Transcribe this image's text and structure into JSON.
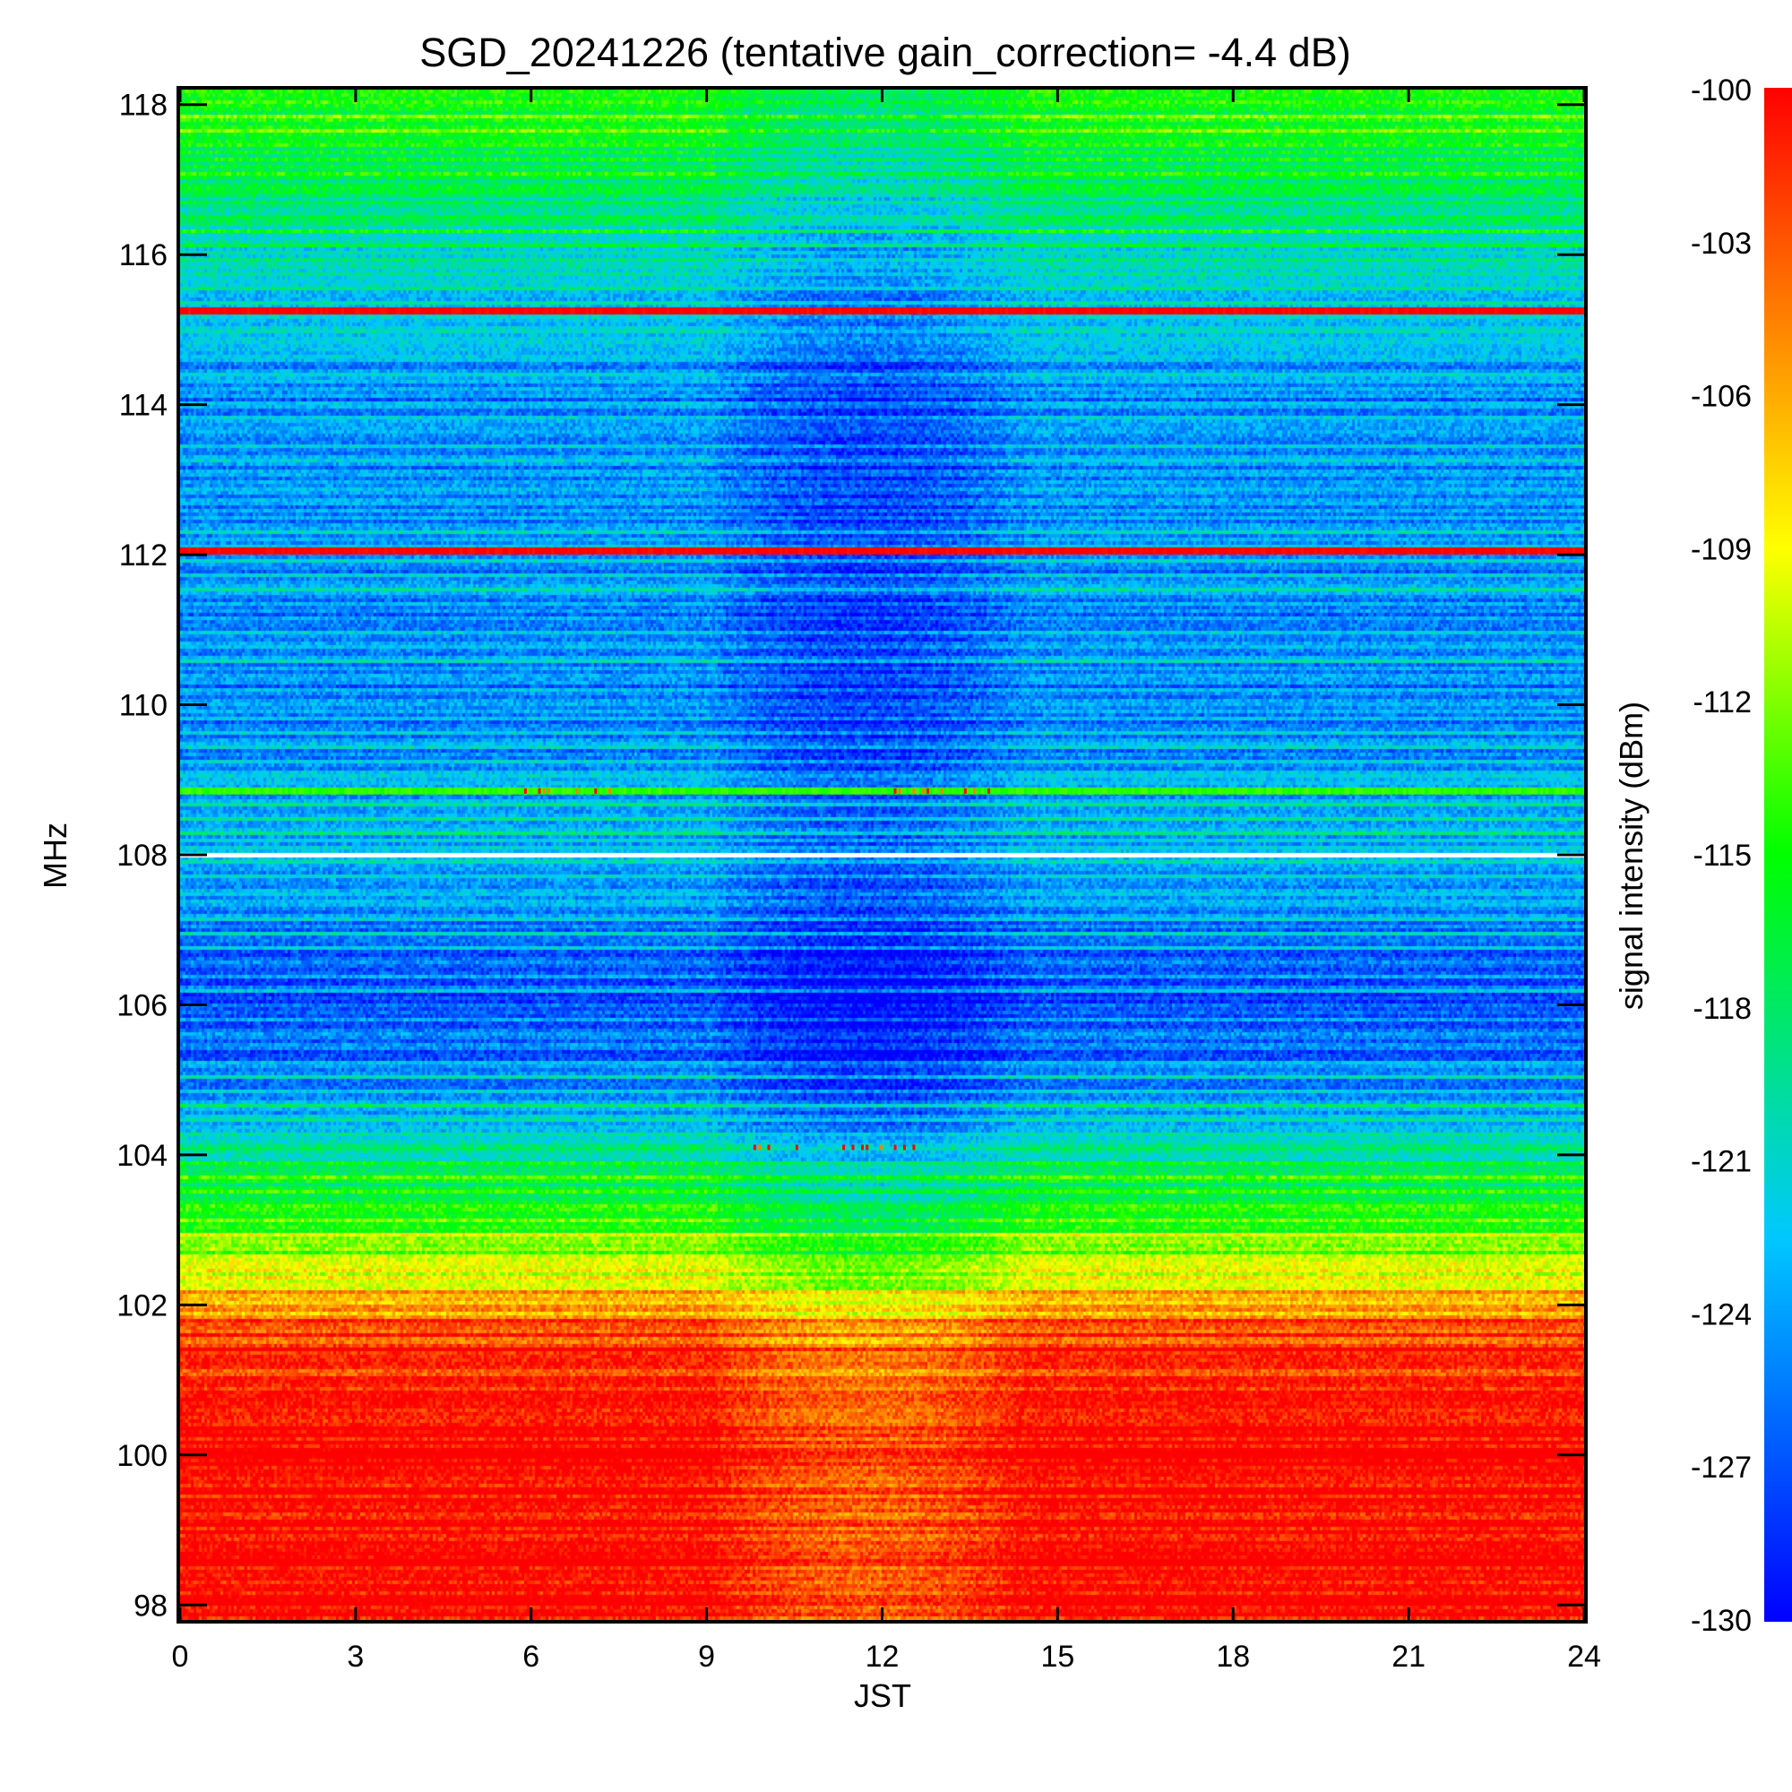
{
  "chart_data": {
    "type": "heatmap",
    "title": "SGD_20241226 (tentative gain_correction= -4.4 dB)",
    "xlabel": "JST",
    "ylabel": "MHz",
    "colorbar_label": "signal intensity (dBm)",
    "xlim": [
      0,
      24
    ],
    "ylim": [
      97.8,
      118.2
    ],
    "x_ticks": [
      0,
      3,
      6,
      9,
      12,
      15,
      18,
      21,
      24
    ],
    "y_ticks": [
      98,
      100,
      102,
      104,
      106,
      108,
      110,
      112,
      114,
      116,
      118
    ],
    "colorbar_range": [
      -130,
      -100
    ],
    "colorbar_ticks": [
      -100,
      -103,
      -106,
      -109,
      -112,
      -115,
      -118,
      -121,
      -124,
      -127,
      -130
    ],
    "colormap": [
      "#0000ff",
      "#00c8ff",
      "#00ff00",
      "#ffff00",
      "#ff8000",
      "#ff0000"
    ],
    "intensity_profile": [
      {
        "mhz": 97.8,
        "dbm": -100
      },
      {
        "mhz": 100.4,
        "dbm": -100
      },
      {
        "mhz": 101.0,
        "dbm": -101.5
      },
      {
        "mhz": 101.6,
        "dbm": -103
      },
      {
        "mhz": 102.2,
        "dbm": -108
      },
      {
        "mhz": 102.8,
        "dbm": -113
      },
      {
        "mhz": 103.4,
        "dbm": -116
      },
      {
        "mhz": 104.0,
        "dbm": -119
      },
      {
        "mhz": 104.6,
        "dbm": -123
      },
      {
        "mhz": 105.3,
        "dbm": -126
      },
      {
        "mhz": 106.0,
        "dbm": -127
      },
      {
        "mhz": 107.0,
        "dbm": -125
      },
      {
        "mhz": 108.0,
        "dbm": -123
      },
      {
        "mhz": 110.0,
        "dbm": -125
      },
      {
        "mhz": 112.0,
        "dbm": -124.5
      },
      {
        "mhz": 114.0,
        "dbm": -125
      },
      {
        "mhz": 115.6,
        "dbm": -122
      },
      {
        "mhz": 116.6,
        "dbm": -119
      },
      {
        "mhz": 117.5,
        "dbm": -116.5
      },
      {
        "mhz": 118.2,
        "dbm": -115
      }
    ],
    "midday_dip": {
      "start_jst": 9.2,
      "end_jst": 14.8,
      "center_jst": 11.7,
      "depth_db": 3
    },
    "strong_lines": [
      {
        "mhz": 115.25,
        "dbm": -100
      },
      {
        "mhz": 112.05,
        "dbm": -100
      },
      {
        "mhz": 108.85,
        "dbm": -114
      }
    ],
    "gap_line": {
      "mhz": 108.0
    }
  }
}
